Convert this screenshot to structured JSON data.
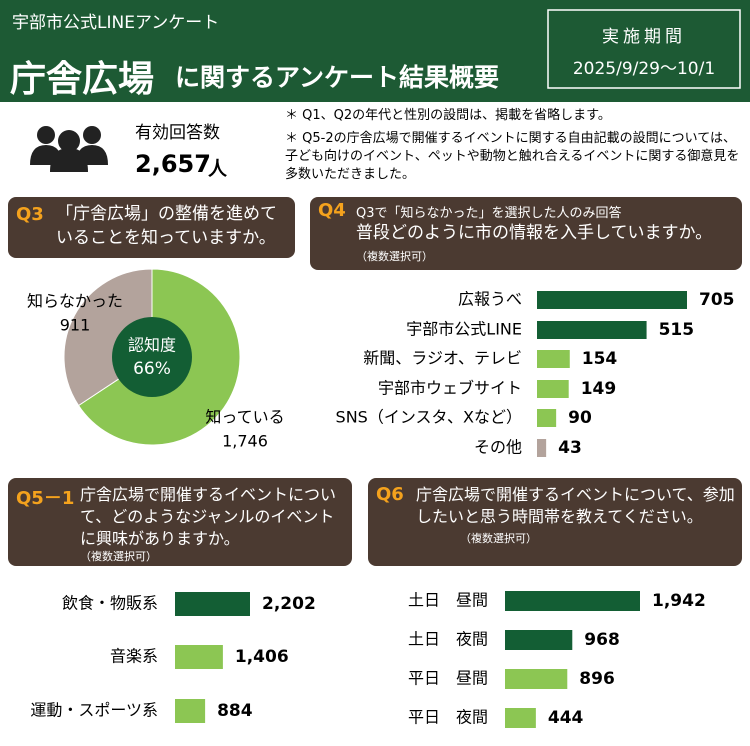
{
  "header": {
    "subtitle": "宇部市公式LINEアンケート",
    "title_main": "庁舎広場",
    "title_rest": "に関するアンケート結果概要",
    "period_label": "実施期間",
    "period": "2025/9/29～10/1"
  },
  "respondents": {
    "label": "有効回答数",
    "count": "2,657",
    "unit": "人"
  },
  "notes": [
    "＊ Q1、Q2の年代と性別の設問は、掲載を省略します。",
    "＊ Q5-2の庁舎広場で開催するイベントに関する自由記載の設問については、子ども向けのイベント、ペットや動物と触れ合えるイベントに関する御意見を多数いただきました。"
  ],
  "chart_data": [
    {
      "type": "pie",
      "tag": "Q3",
      "question": "「庁舎広場」の整備を進めていることを知っていますか。",
      "center_text": [
        "認知度",
        "66%"
      ],
      "categories": [
        "知っている",
        "知らなかった"
      ],
      "values": [
        1746,
        911
      ],
      "value_labels": [
        "1,746",
        "911"
      ],
      "colors": [
        "#8cc653",
        "#b3a39c"
      ]
    },
    {
      "type": "bar",
      "tag": "Q4",
      "subquestion": "Q3で「知らなかった」を選択した人のみ回答",
      "question": "普段どのように市の情報を入手していますか。",
      "note": "（複数選択可）",
      "categories": [
        "広報うべ",
        "宇部市公式LINE",
        "新聞、ラジオ、テレビ",
        "宇部市ウェブサイト",
        "SNS（インスタ、Xなど）",
        "その他"
      ],
      "values": [
        705,
        515,
        154,
        149,
        90,
        43
      ],
      "colors": [
        "#135e34",
        "#135e34",
        "#8cc653",
        "#8cc653",
        "#8cc653",
        "#b3a39c"
      ]
    },
    {
      "type": "bar",
      "tag": "Q5－1",
      "question": "庁舎広場で開催するイベントについて、どのようなジャンルのイベントに興味がありますか。",
      "note": "（複数選択可）",
      "categories": [
        "飲食・物販系",
        "音楽系",
        "運動・スポーツ系"
      ],
      "values": [
        2202,
        1406,
        884
      ],
      "value_labels": [
        "2,202",
        "1,406",
        "884"
      ],
      "colors": [
        "#135e34",
        "#8cc653",
        "#8cc653"
      ]
    },
    {
      "type": "bar",
      "tag": "Q6",
      "question": "庁舎広場で開催するイベントについて、参加したいと思う時間帯を教えてください。",
      "note": "（複数選択可）",
      "categories": [
        "土日　昼間",
        "土日　夜間",
        "平日　昼間",
        "平日　夜間"
      ],
      "values": [
        1942,
        968,
        896,
        444
      ],
      "value_labels": [
        "1,942",
        "968",
        "896",
        "444"
      ],
      "colors": [
        "#135e34",
        "#135e34",
        "#8cc653",
        "#8cc653"
      ]
    }
  ]
}
